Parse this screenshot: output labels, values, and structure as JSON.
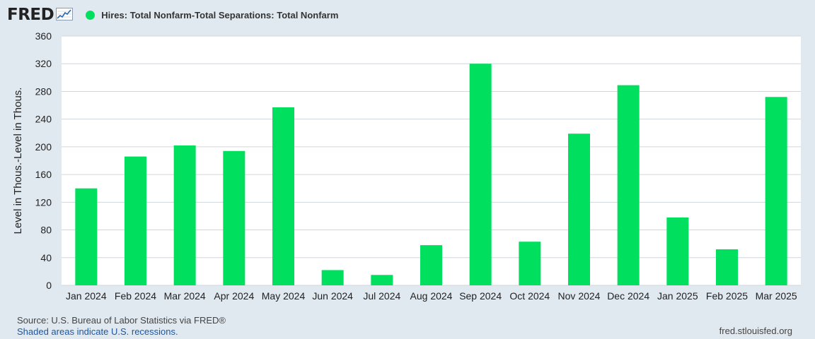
{
  "brand": {
    "logo_text": "FRED"
  },
  "legend": {
    "label": "Hires: Total Nonfarm-Total Separations: Total Nonfarm",
    "color": "#00e05e"
  },
  "footer": {
    "source": "Source: U.S. Bureau of Labor Statistics via FRED®",
    "recession_note": "Shaded areas indicate U.S. recessions.",
    "site": "fred.stlouisfed.org"
  },
  "chart_data": {
    "type": "bar",
    "title": "",
    "xlabel": "",
    "ylabel": "Level in Thous.-Level in Thous.",
    "ylim": [
      0,
      360
    ],
    "yticks": [
      0,
      40,
      80,
      120,
      160,
      200,
      240,
      280,
      320,
      360
    ],
    "grid": true,
    "categories": [
      "Jan 2024",
      "Feb 2024",
      "Mar 2024",
      "Apr 2024",
      "May 2024",
      "Jun 2024",
      "Jul 2024",
      "Aug 2024",
      "Sep 2024",
      "Oct 2024",
      "Nov 2024",
      "Dec 2024",
      "Jan 2025",
      "Feb 2025",
      "Mar 2025"
    ],
    "series": [
      {
        "name": "Hires: Total Nonfarm-Total Separations: Total Nonfarm",
        "color": "#00e05e",
        "values": [
          140,
          186,
          202,
          194,
          257,
          22,
          15,
          58,
          320,
          63,
          219,
          289,
          98,
          52,
          272
        ]
      }
    ]
  }
}
